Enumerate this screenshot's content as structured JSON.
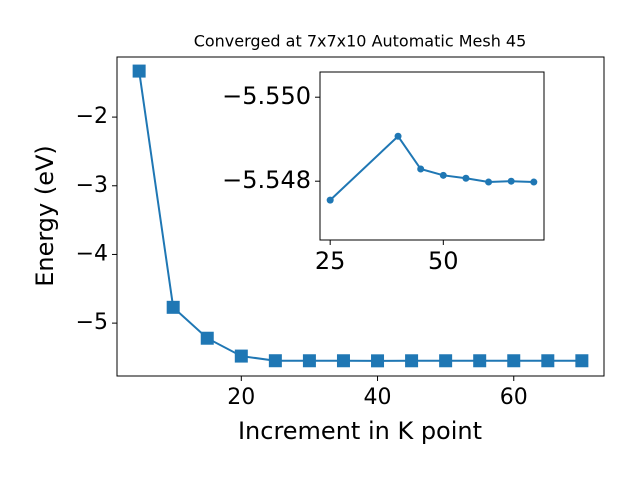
{
  "chart_data": [
    {
      "type": "line",
      "title": "Converged at 7x7x10 Automatic Mesh 45",
      "x_label": "Increment in K point",
      "y_label": "Energy (eV)",
      "color": "#1f77b4",
      "marker": "square",
      "x": [
        5,
        10,
        15,
        20,
        25,
        30,
        35,
        40,
        45,
        50,
        55,
        60,
        65,
        70
      ],
      "values": [
        -1.33,
        -4.77,
        -5.22,
        -5.48,
        -5.5476,
        -5.548,
        -5.548,
        -5.5491,
        -5.5483,
        -5.5481,
        -5.5481,
        -5.548,
        -5.548,
        -5.548
      ],
      "xlim": [
        1.75,
        73.25
      ],
      "xticks": [
        20,
        40,
        60
      ],
      "ylim": [
        -5.77,
        -1.125
      ],
      "yticks": [
        {
          "value": -5,
          "label": "−5"
        },
        {
          "value": -4,
          "label": "−4"
        },
        {
          "value": -3,
          "label": "−3"
        },
        {
          "value": -2,
          "label": "−2"
        }
      ]
    },
    {
      "type": "line",
      "color": "#1f77b4",
      "marker": "circle",
      "x": [
        25,
        40,
        45,
        50,
        55,
        60,
        65,
        70
      ],
      "values": [
        -5.54755,
        -5.54907,
        -5.54829,
        -5.54814,
        -5.54807,
        -5.54798,
        -5.548,
        -5.54798
      ],
      "xlim": [
        22.75,
        72.25
      ],
      "xticks": [
        25,
        50
      ],
      "ylim": [
        -5.5466,
        -5.5506
      ],
      "yticks": [
        {
          "value": -5.548,
          "label": "−5.548"
        },
        {
          "value": -5.55,
          "label": "−5.550"
        }
      ]
    }
  ]
}
